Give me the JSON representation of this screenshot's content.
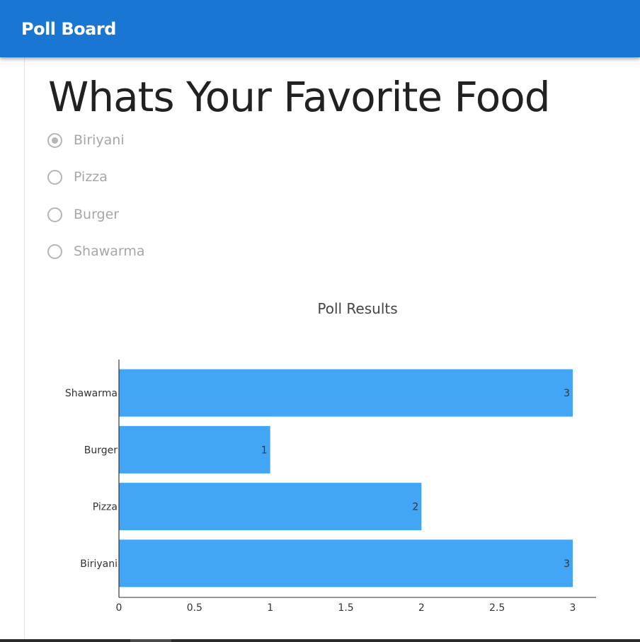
{
  "appbar": {
    "title": "Poll Board",
    "color": "#1976d2"
  },
  "poll": {
    "question": "Whats Your Favorite Food",
    "selected_index": 0,
    "options": [
      {
        "label": "Biriyani"
      },
      {
        "label": "Pizza"
      },
      {
        "label": "Burger"
      },
      {
        "label": "Shawarma"
      }
    ]
  },
  "chart_data": {
    "type": "bar",
    "orientation": "horizontal",
    "title": "Poll Results",
    "categories": [
      "Biriyani",
      "Pizza",
      "Burger",
      "Shawarma"
    ],
    "values": [
      3,
      2,
      1,
      3
    ],
    "data_labels": [
      "3",
      "2",
      "1",
      "3"
    ],
    "xlim": [
      0,
      3
    ],
    "xticks": [
      "0",
      "0.5",
      "1",
      "1.5",
      "2",
      "2.5",
      "3"
    ],
    "bar_color": "#42a5f5",
    "grid": false,
    "xlabel": "",
    "ylabel": ""
  }
}
